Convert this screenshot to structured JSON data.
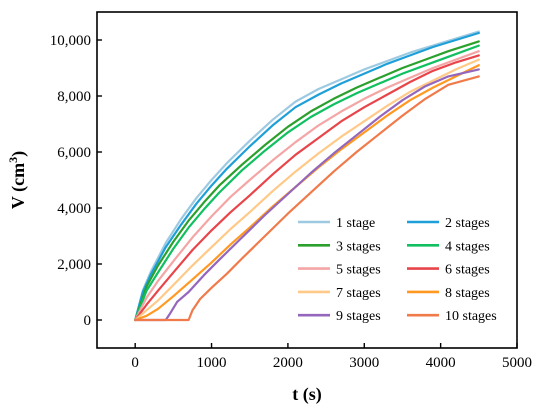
{
  "chart_data": {
    "type": "line",
    "title": "",
    "xlabel": "t (s)",
    "ylabel": "V (cm",
    "ylabel_sup": "3",
    "ylabel_close": ")",
    "xlim": [
      -500,
      5000
    ],
    "ylim": [
      -1000,
      11000
    ],
    "xticks": [
      0,
      1000,
      2000,
      3000,
      4000,
      5000
    ],
    "yticks": [
      0,
      2000,
      4000,
      6000,
      8000,
      10000
    ],
    "xtick_labels": [
      "0",
      "1000",
      "2000",
      "3000",
      "4000",
      "5000"
    ],
    "ytick_labels": [
      "0",
      "2,000",
      "4,000",
      "6,000",
      "8,000",
      "10,000"
    ],
    "grid": false,
    "legend_position": "bottom-right",
    "series": [
      {
        "name": "1 stage",
        "color": "#9ecae1",
        "x": [
          0,
          100,
          200,
          400,
          600,
          800,
          1000,
          1200,
          1500,
          1800,
          2100,
          2400,
          2700,
          3000,
          3300,
          3600,
          3900,
          4200,
          4500
        ],
        "y": [
          0,
          1050,
          1700,
          2750,
          3600,
          4350,
          5000,
          5600,
          6400,
          7150,
          7800,
          8250,
          8600,
          8950,
          9250,
          9550,
          9800,
          10050,
          10300
        ]
      },
      {
        "name": "2 stages",
        "color": "#1f9fd8",
        "x": [
          0,
          100,
          200,
          400,
          600,
          800,
          1000,
          1200,
          1500,
          1800,
          2100,
          2400,
          2700,
          3000,
          3300,
          3600,
          3900,
          4200,
          4500
        ],
        "y": [
          0,
          1000,
          1600,
          2600,
          3400,
          4150,
          4800,
          5400,
          6200,
          6950,
          7600,
          8050,
          8450,
          8800,
          9150,
          9450,
          9750,
          10000,
          10250
        ]
      },
      {
        "name": "3 stages",
        "color": "#2ca02c",
        "x": [
          0,
          150,
          300,
          500,
          700,
          900,
          1100,
          1400,
          1700,
          2000,
          2300,
          2600,
          2900,
          3200,
          3500,
          3800,
          4100,
          4500
        ],
        "y": [
          0,
          1200,
          1950,
          2800,
          3550,
          4200,
          4800,
          5550,
          6250,
          6900,
          7450,
          7900,
          8300,
          8650,
          9000,
          9300,
          9600,
          9950
        ]
      },
      {
        "name": "4 stages",
        "color": "#10c060",
        "x": [
          0,
          150,
          300,
          500,
          700,
          900,
          1100,
          1400,
          1700,
          2000,
          2300,
          2600,
          2900,
          3200,
          3500,
          3800,
          4100,
          4500
        ],
        "y": [
          0,
          1050,
          1700,
          2550,
          3300,
          3950,
          4550,
          5350,
          6050,
          6700,
          7250,
          7700,
          8100,
          8450,
          8800,
          9100,
          9400,
          9800
        ]
      },
      {
        "name": "5 stages",
        "color": "#f4a5a5",
        "x": [
          0,
          150,
          300,
          500,
          750,
          1000,
          1250,
          1500,
          1800,
          2100,
          2400,
          2700,
          3000,
          3300,
          3600,
          3900,
          4200,
          4500
        ],
        "y": [
          0,
          800,
          1400,
          2100,
          2950,
          3700,
          4400,
          5000,
          5700,
          6350,
          6950,
          7450,
          7900,
          8300,
          8650,
          9000,
          9300,
          9600
        ]
      },
      {
        "name": "6 stages",
        "color": "#e8454a",
        "x": [
          0,
          150,
          300,
          500,
          750,
          1000,
          1250,
          1500,
          1800,
          2100,
          2400,
          2700,
          3000,
          3300,
          3600,
          3900,
          4200,
          4500
        ],
        "y": [
          0,
          550,
          1050,
          1700,
          2500,
          3200,
          3850,
          4450,
          5200,
          5900,
          6500,
          7100,
          7600,
          8050,
          8500,
          8900,
          9200,
          9450
        ]
      },
      {
        "name": "7 stages",
        "color": "#ffc988",
        "x": [
          0,
          150,
          300,
          500,
          750,
          1000,
          1250,
          1500,
          1800,
          2100,
          2400,
          2700,
          3000,
          3300,
          3600,
          3900,
          4200,
          4500
        ],
        "y": [
          0,
          350,
          700,
          1250,
          1950,
          2600,
          3250,
          3850,
          4600,
          5300,
          5950,
          6550,
          7100,
          7650,
          8150,
          8550,
          8950,
          9300
        ]
      },
      {
        "name": "8 stages",
        "color": "#ff9922",
        "x": [
          0,
          150,
          300,
          500,
          750,
          1000,
          1250,
          1500,
          1800,
          2100,
          2400,
          2700,
          3000,
          3300,
          3600,
          3900,
          4200,
          4500
        ],
        "y": [
          0,
          150,
          400,
          850,
          1450,
          2050,
          2700,
          3300,
          4050,
          4750,
          5450,
          6100,
          6700,
          7300,
          7850,
          8300,
          8700,
          9100
        ]
      },
      {
        "name": "9 stages",
        "color": "#9467bd",
        "x": [
          0,
          400,
          450,
          550,
          700,
          900,
          1100,
          1400,
          1700,
          2000,
          2300,
          2600,
          2900,
          3200,
          3500,
          3800,
          4100,
          4500
        ],
        "y": [
          0,
          0,
          200,
          650,
          1000,
          1600,
          2150,
          2950,
          3750,
          4500,
          5250,
          5950,
          6600,
          7250,
          7850,
          8350,
          8700,
          8950
        ]
      },
      {
        "name": "10 stages",
        "color": "#f07a4a",
        "x": [
          0,
          700,
          750,
          850,
          1000,
          1200,
          1400,
          1700,
          2000,
          2300,
          2600,
          2900,
          3200,
          3500,
          3800,
          4100,
          4500
        ],
        "y": [
          0,
          0,
          350,
          750,
          1150,
          1650,
          2200,
          3000,
          3800,
          4550,
          5300,
          6000,
          6650,
          7300,
          7900,
          8400,
          8700
        ]
      }
    ]
  }
}
